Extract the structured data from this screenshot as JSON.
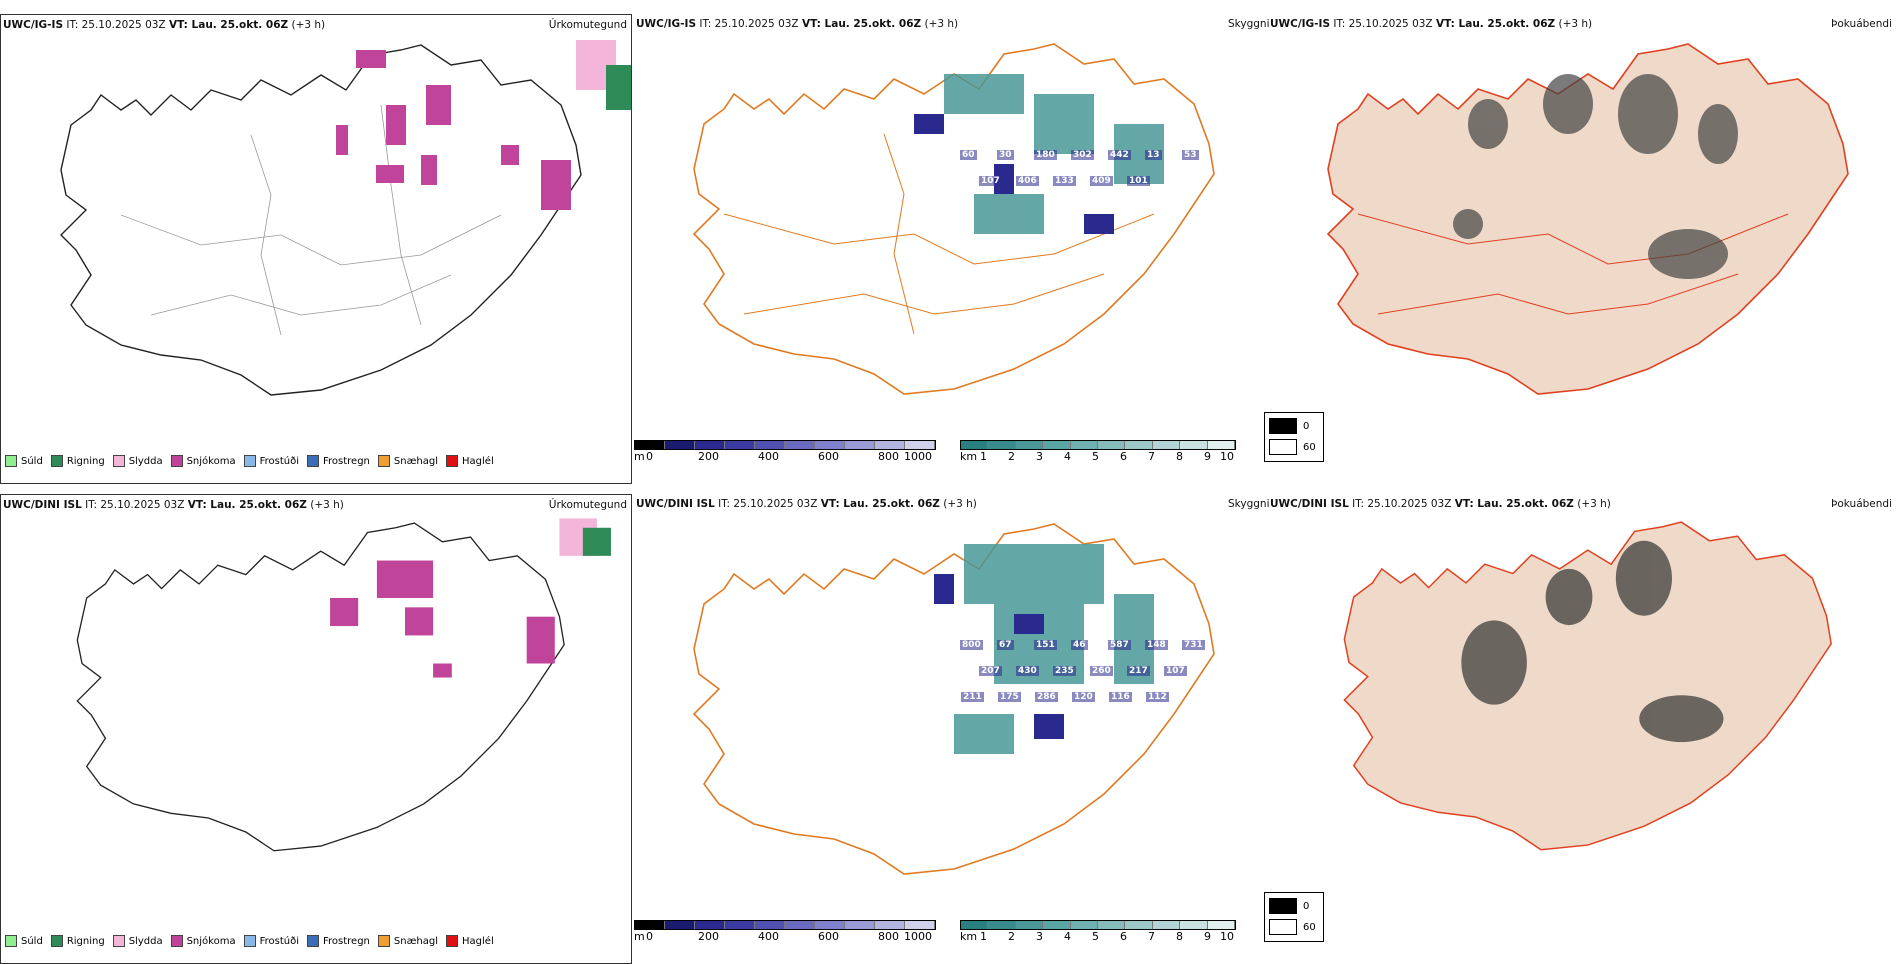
{
  "panels": {
    "row1": {
      "header_model": "UWC/IG-IS",
      "header_it_label": "IT:",
      "header_it": "25.10.2025 03Z",
      "header_vt_label": "VT: Lau. 25.okt. 06Z",
      "header_offset": "(+3 h)"
    },
    "row2": {
      "header_model": "UWC/DINI ISL",
      "header_it_label": "IT:",
      "header_it": "25.10.2025 03Z",
      "header_vt_label": "VT: Lau. 25.okt. 06Z",
      "header_offset": "(+3 h)"
    }
  },
  "panel_titles": {
    "precip_type": "Úrkomutegund",
    "visibility": "Skyggni",
    "fog": "Þokuábendi"
  },
  "precip_legend": [
    {
      "label": "Súld",
      "color": "#90ee90"
    },
    {
      "label": "Rigning",
      "color": "#2e8b57"
    },
    {
      "label": "Slydda",
      "color": "#f4b6d8"
    },
    {
      "label": "Snjókoma",
      "color": "#c0449a"
    },
    {
      "label": "Frostúði",
      "color": "#8ab8e8"
    },
    {
      "label": "Frostregn",
      "color": "#3a6fb8"
    },
    {
      "label": "Snæhagl",
      "color": "#f0a030"
    },
    {
      "label": "Haglél",
      "color": "#e01010"
    }
  ],
  "vis_scale_m": {
    "unit": "m",
    "ticks": [
      "0",
      "200",
      "400",
      "600",
      "800",
      "1000"
    ],
    "colors": [
      "#000000",
      "#1a1a6e",
      "#2a2a8e",
      "#3a3aa0",
      "#5050b0",
      "#6a6ac0",
      "#8080cc",
      "#9a9ad6",
      "#b4b4e0",
      "#d0d0ec"
    ]
  },
  "vis_scale_km": {
    "unit": "km",
    "ticks": [
      "1",
      "2",
      "3",
      "4",
      "5",
      "6",
      "7",
      "8",
      "9",
      "10"
    ],
    "colors": [
      "#2a8080",
      "#3a8c8c",
      "#4a9898",
      "#5aa4a4",
      "#70b0b0",
      "#86bcbc",
      "#9cc8c8",
      "#b2d4d4",
      "#c8e0e0",
      "#e0eeee"
    ]
  },
  "fog_legend": [
    {
      "label": "0",
      "color": "#000000"
    },
    {
      "label": "60",
      "color": "#ffffff"
    }
  ],
  "vis_labels_row1": [
    "60",
    "30",
    "180",
    "302",
    "442",
    "13",
    "53",
    "107",
    "406",
    "133",
    "409",
    "101"
  ],
  "vis_labels_row2": [
    "800",
    "67",
    "151",
    "46",
    "587",
    "148",
    "731",
    "207",
    "430",
    "235",
    "260",
    "217",
    "107",
    "211",
    "175",
    "286",
    "120",
    "116",
    "112"
  ]
}
